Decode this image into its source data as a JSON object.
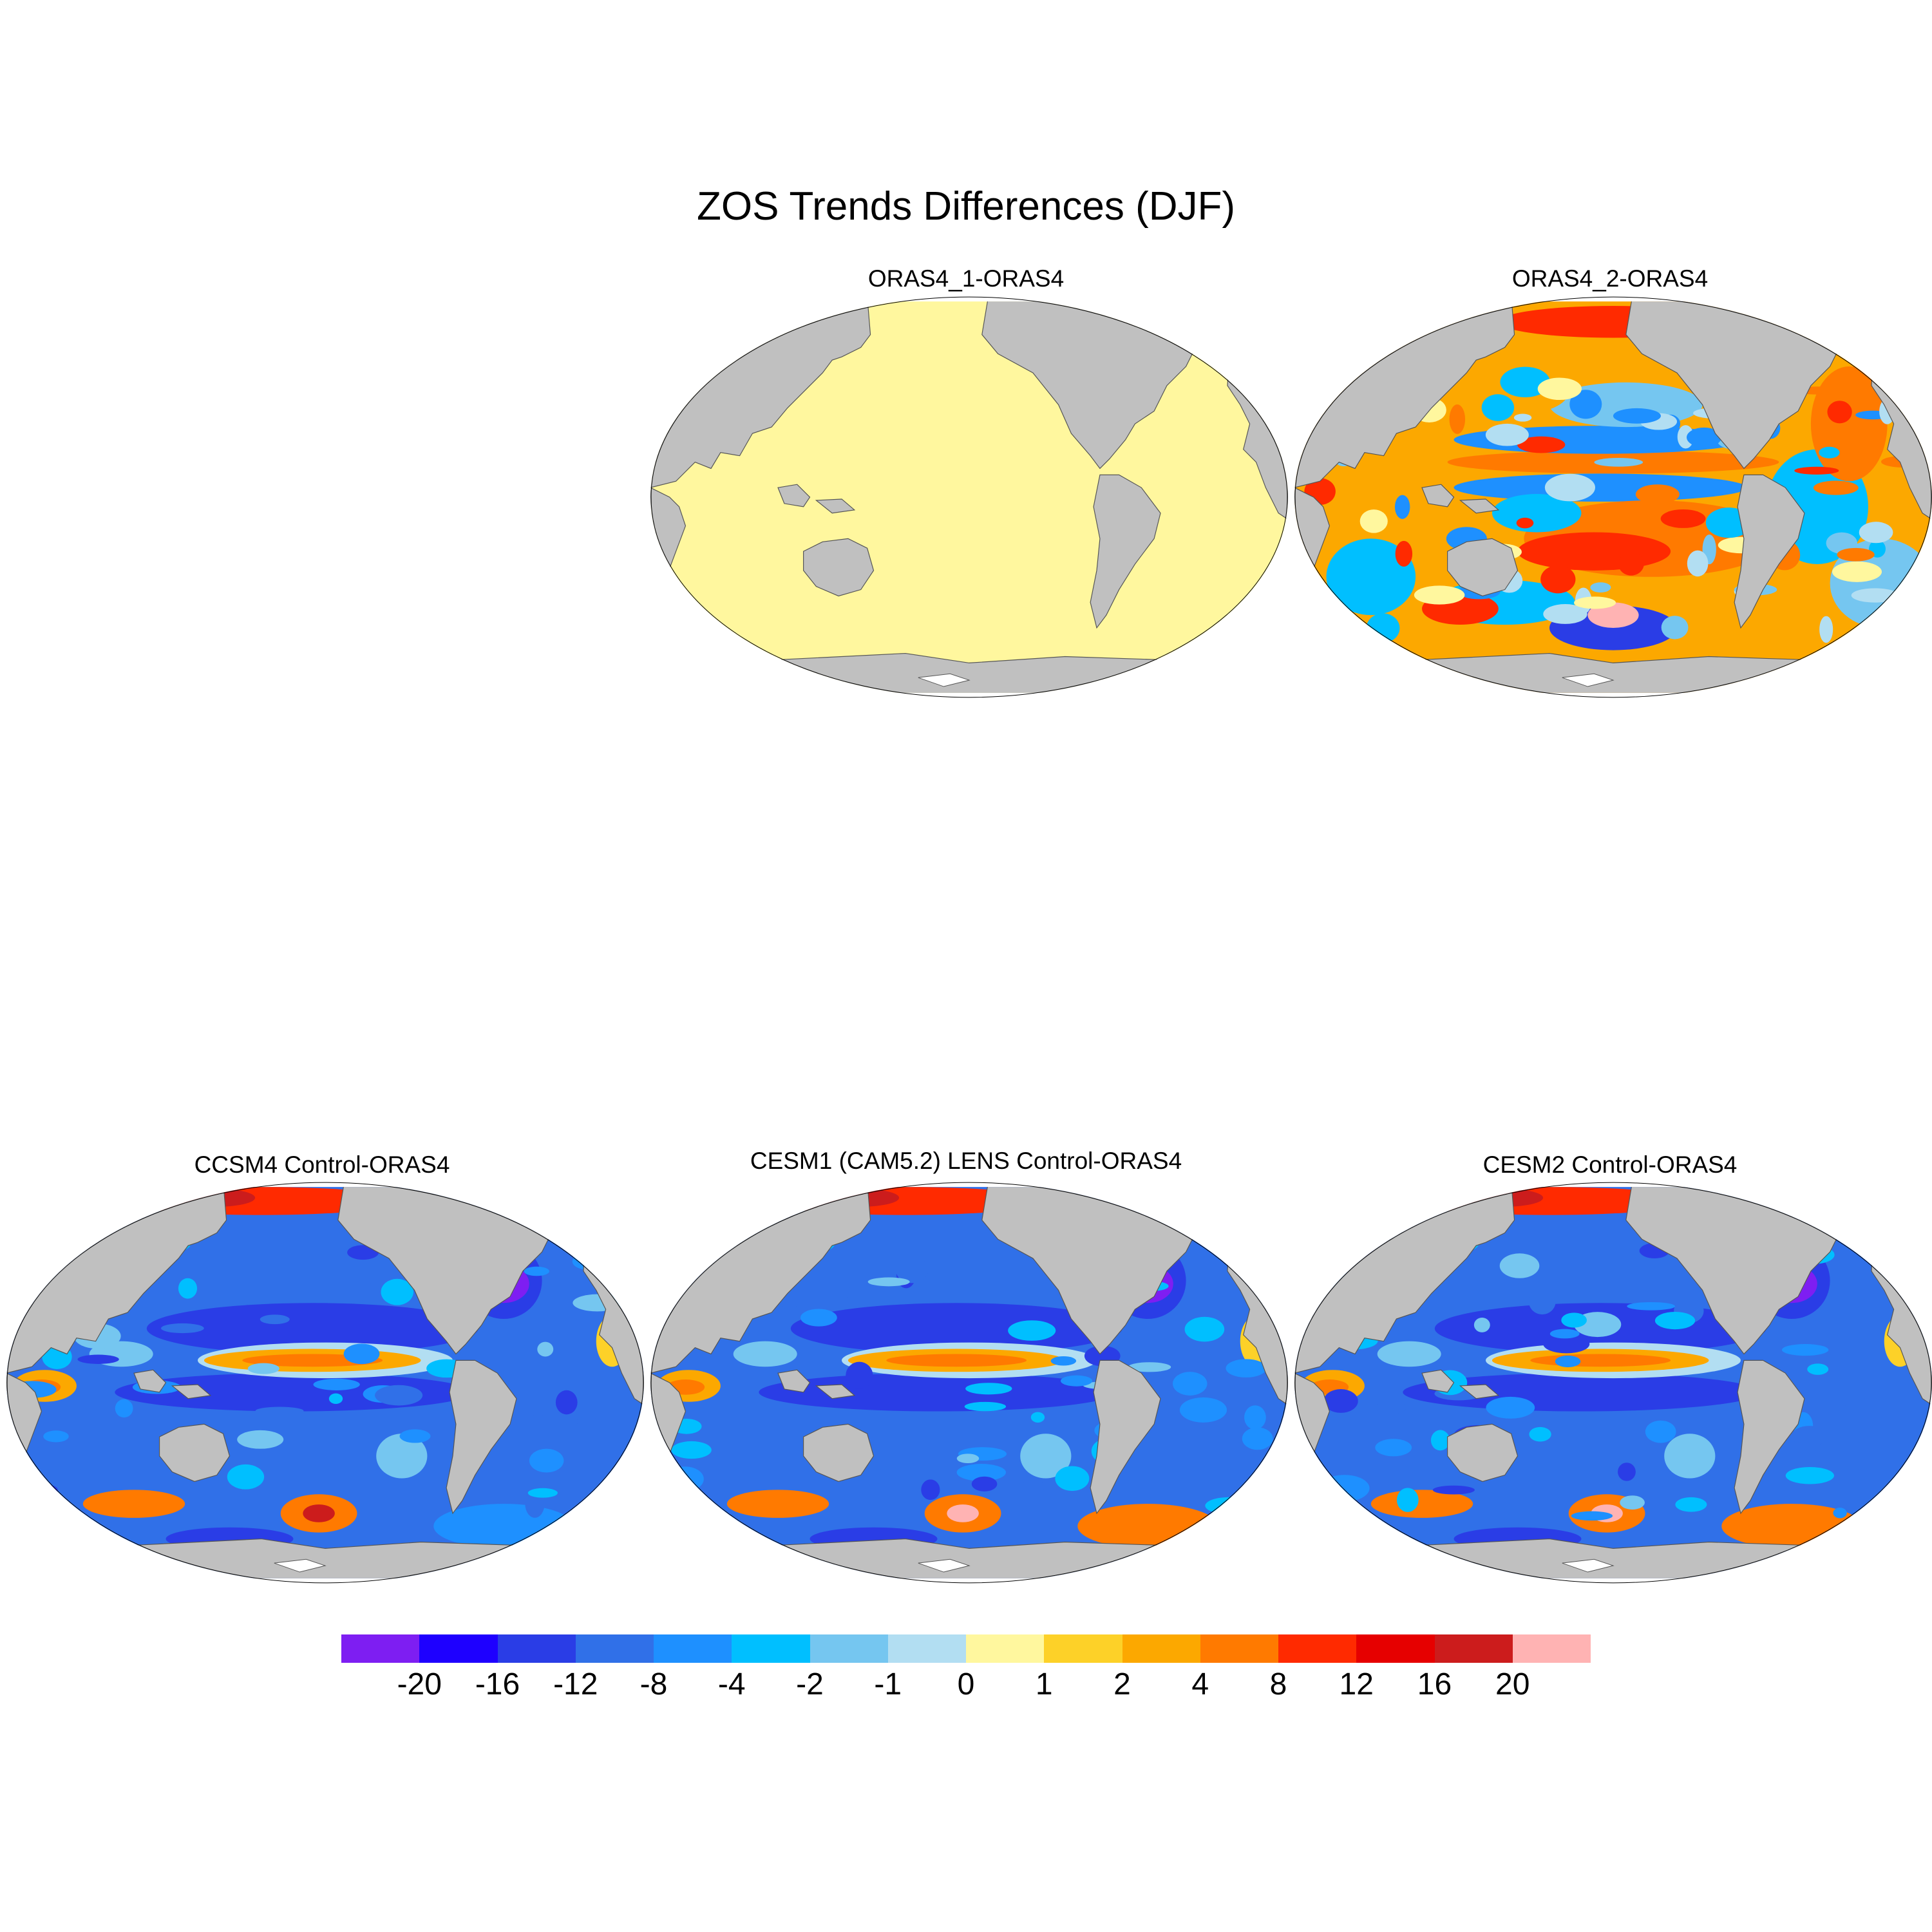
{
  "title": "ZOS Trends Differences (DJF)",
  "colors": {
    "land": "#c0c0c0",
    "coastline": "#555555",
    "ice": "#ffffff"
  },
  "colorbar": {
    "colors": [
      "#7e1ef2",
      "#1e00ff",
      "#2a3de6",
      "#3070e8",
      "#1e90ff",
      "#00bfff",
      "#75c6f0",
      "#b2def2",
      "#fff79e",
      "#fdd128",
      "#fca800",
      "#ff7a00",
      "#ff2a00",
      "#e60000",
      "#cc1c1c",
      "#ffb3b3"
    ],
    "labels": [
      "-20",
      "-16",
      "-12",
      "-8",
      "-4",
      "-2",
      "-1",
      "0",
      "1",
      "2",
      "4",
      "8",
      "12",
      "16",
      "20"
    ]
  },
  "panels": [
    {
      "title": "ORAS4_1-ORAS4",
      "pattern": "flat",
      "base": "#fff79e"
    },
    {
      "title": "ORAS4_2-ORAS4",
      "pattern": "mixed",
      "base": "#fca800"
    },
    {
      "title": "CCSM4 Control-ORAS4",
      "pattern": "model",
      "base": "#3070e8"
    },
    {
      "title": "CESM1 (CAM5.2) LENS Control-ORAS4",
      "pattern": "model",
      "base": "#3070e8"
    },
    {
      "title": "CESM2 Control-ORAS4",
      "pattern": "model",
      "base": "#3070e8"
    }
  ]
}
